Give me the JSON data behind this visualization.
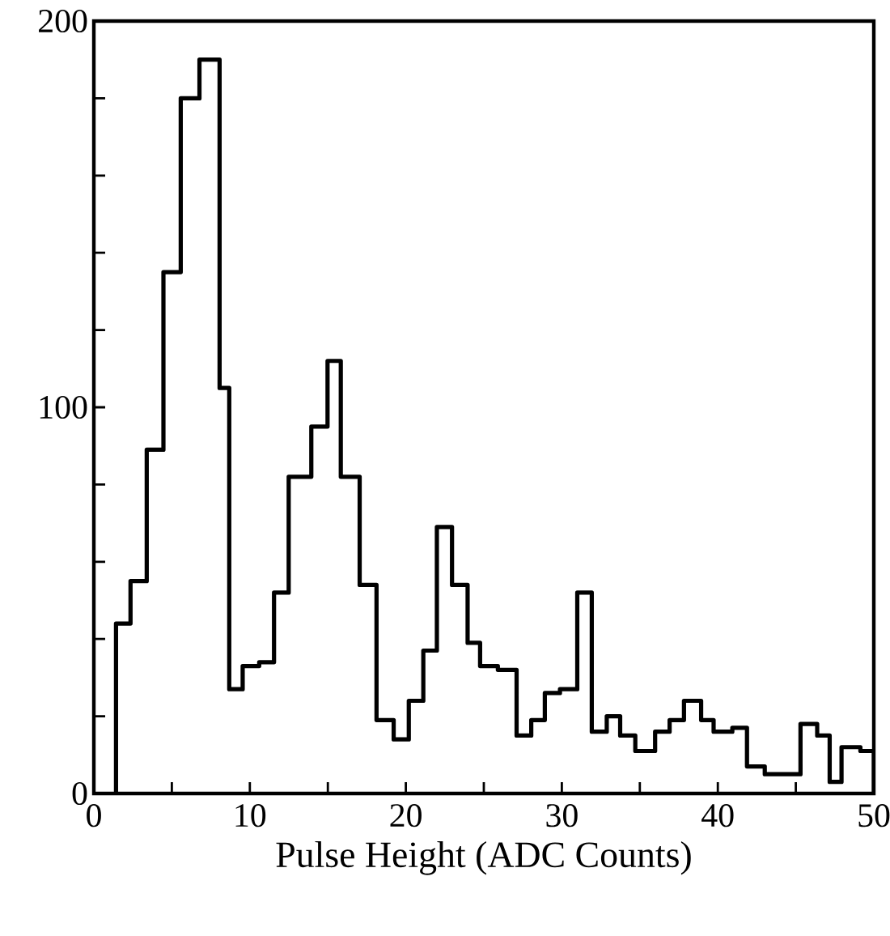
{
  "chart_data": {
    "type": "histogram",
    "xlabel": "Pulse Height (ADC Counts)",
    "color": "#000000",
    "bins": [
      1.42,
      2.35,
      3.39,
      4.46,
      5.57,
      6.77,
      8.06,
      8.68,
      9.54,
      10.6,
      11.55,
      12.49,
      13.94,
      14.98,
      15.83,
      17.04,
      18.12,
      19.22,
      20.19,
      21.12,
      21.99,
      22.96,
      23.96,
      24.76,
      25.9,
      27.1,
      28.04,
      28.91,
      29.88,
      30.99,
      31.92,
      32.88,
      33.74,
      34.71,
      35.98,
      36.91,
      37.83,
      38.93,
      39.73,
      40.93,
      41.87,
      43.01,
      45.3,
      46.37,
      47.17,
      47.93,
      49.14,
      50
    ],
    "values": [
      44,
      55,
      89,
      135,
      180,
      190,
      105,
      27,
      33,
      34,
      52,
      82,
      95,
      112,
      82,
      54,
      19,
      14,
      24,
      37,
      69,
      54,
      39,
      33,
      32,
      15,
      19,
      26,
      27,
      52,
      16,
      20,
      15,
      11,
      16,
      19,
      24,
      19,
      16,
      17,
      7,
      5,
      18,
      15,
      3,
      12,
      11
    ],
    "xlim": [
      0,
      50
    ],
    "ylim": [
      0,
      200
    ],
    "xticks": [
      0,
      {
        "value": 5,
        "label": null
      },
      10,
      {
        "value": 15,
        "label": null
      },
      20,
      {
        "value": 25,
        "label": null
      },
      30,
      {
        "value": 35,
        "label": null
      },
      40,
      {
        "value": 45,
        "label": null
      },
      50
    ],
    "yticks": [
      0,
      {
        "value": 20,
        "label": null
      },
      {
        "value": 40,
        "label": null
      },
      {
        "value": 60,
        "label": null
      },
      {
        "value": 80,
        "label": null
      },
      100,
      {
        "value": 120,
        "label": null
      },
      {
        "value": 140,
        "label": null
      },
      {
        "value": 160,
        "label": null
      },
      {
        "value": 180,
        "label": null
      },
      200
    ],
    "line_style": "solid"
  }
}
